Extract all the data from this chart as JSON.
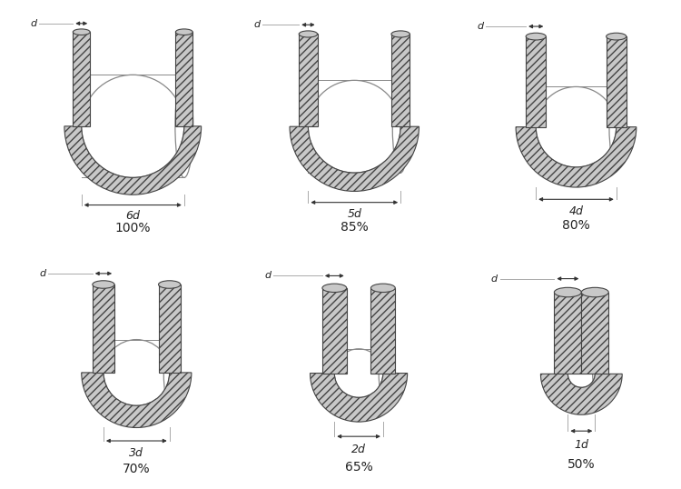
{
  "panels": [
    {
      "label": "6d",
      "pct": "100%",
      "nd": 6,
      "col": 0,
      "row": 0
    },
    {
      "label": "5d",
      "pct": "85%",
      "nd": 5,
      "col": 1,
      "row": 0
    },
    {
      "label": "4d",
      "pct": "80%",
      "nd": 4,
      "col": 2,
      "row": 0
    },
    {
      "label": "3d",
      "pct": "70%",
      "nd": 3,
      "col": 0,
      "row": 1
    },
    {
      "label": "2d",
      "pct": "65%",
      "nd": 2,
      "col": 1,
      "row": 1
    },
    {
      "label": "1d",
      "pct": "50%",
      "nd": 1,
      "col": 2,
      "row": 1
    }
  ],
  "bg_color": "#ffffff",
  "rope_fill": "#c8c8c8",
  "rope_edge": "#444444",
  "hatch": "////",
  "cyl_edge": "#888888",
  "dim_color": "#333333",
  "text_color": "#222222",
  "line_color": "#aaaaaa"
}
